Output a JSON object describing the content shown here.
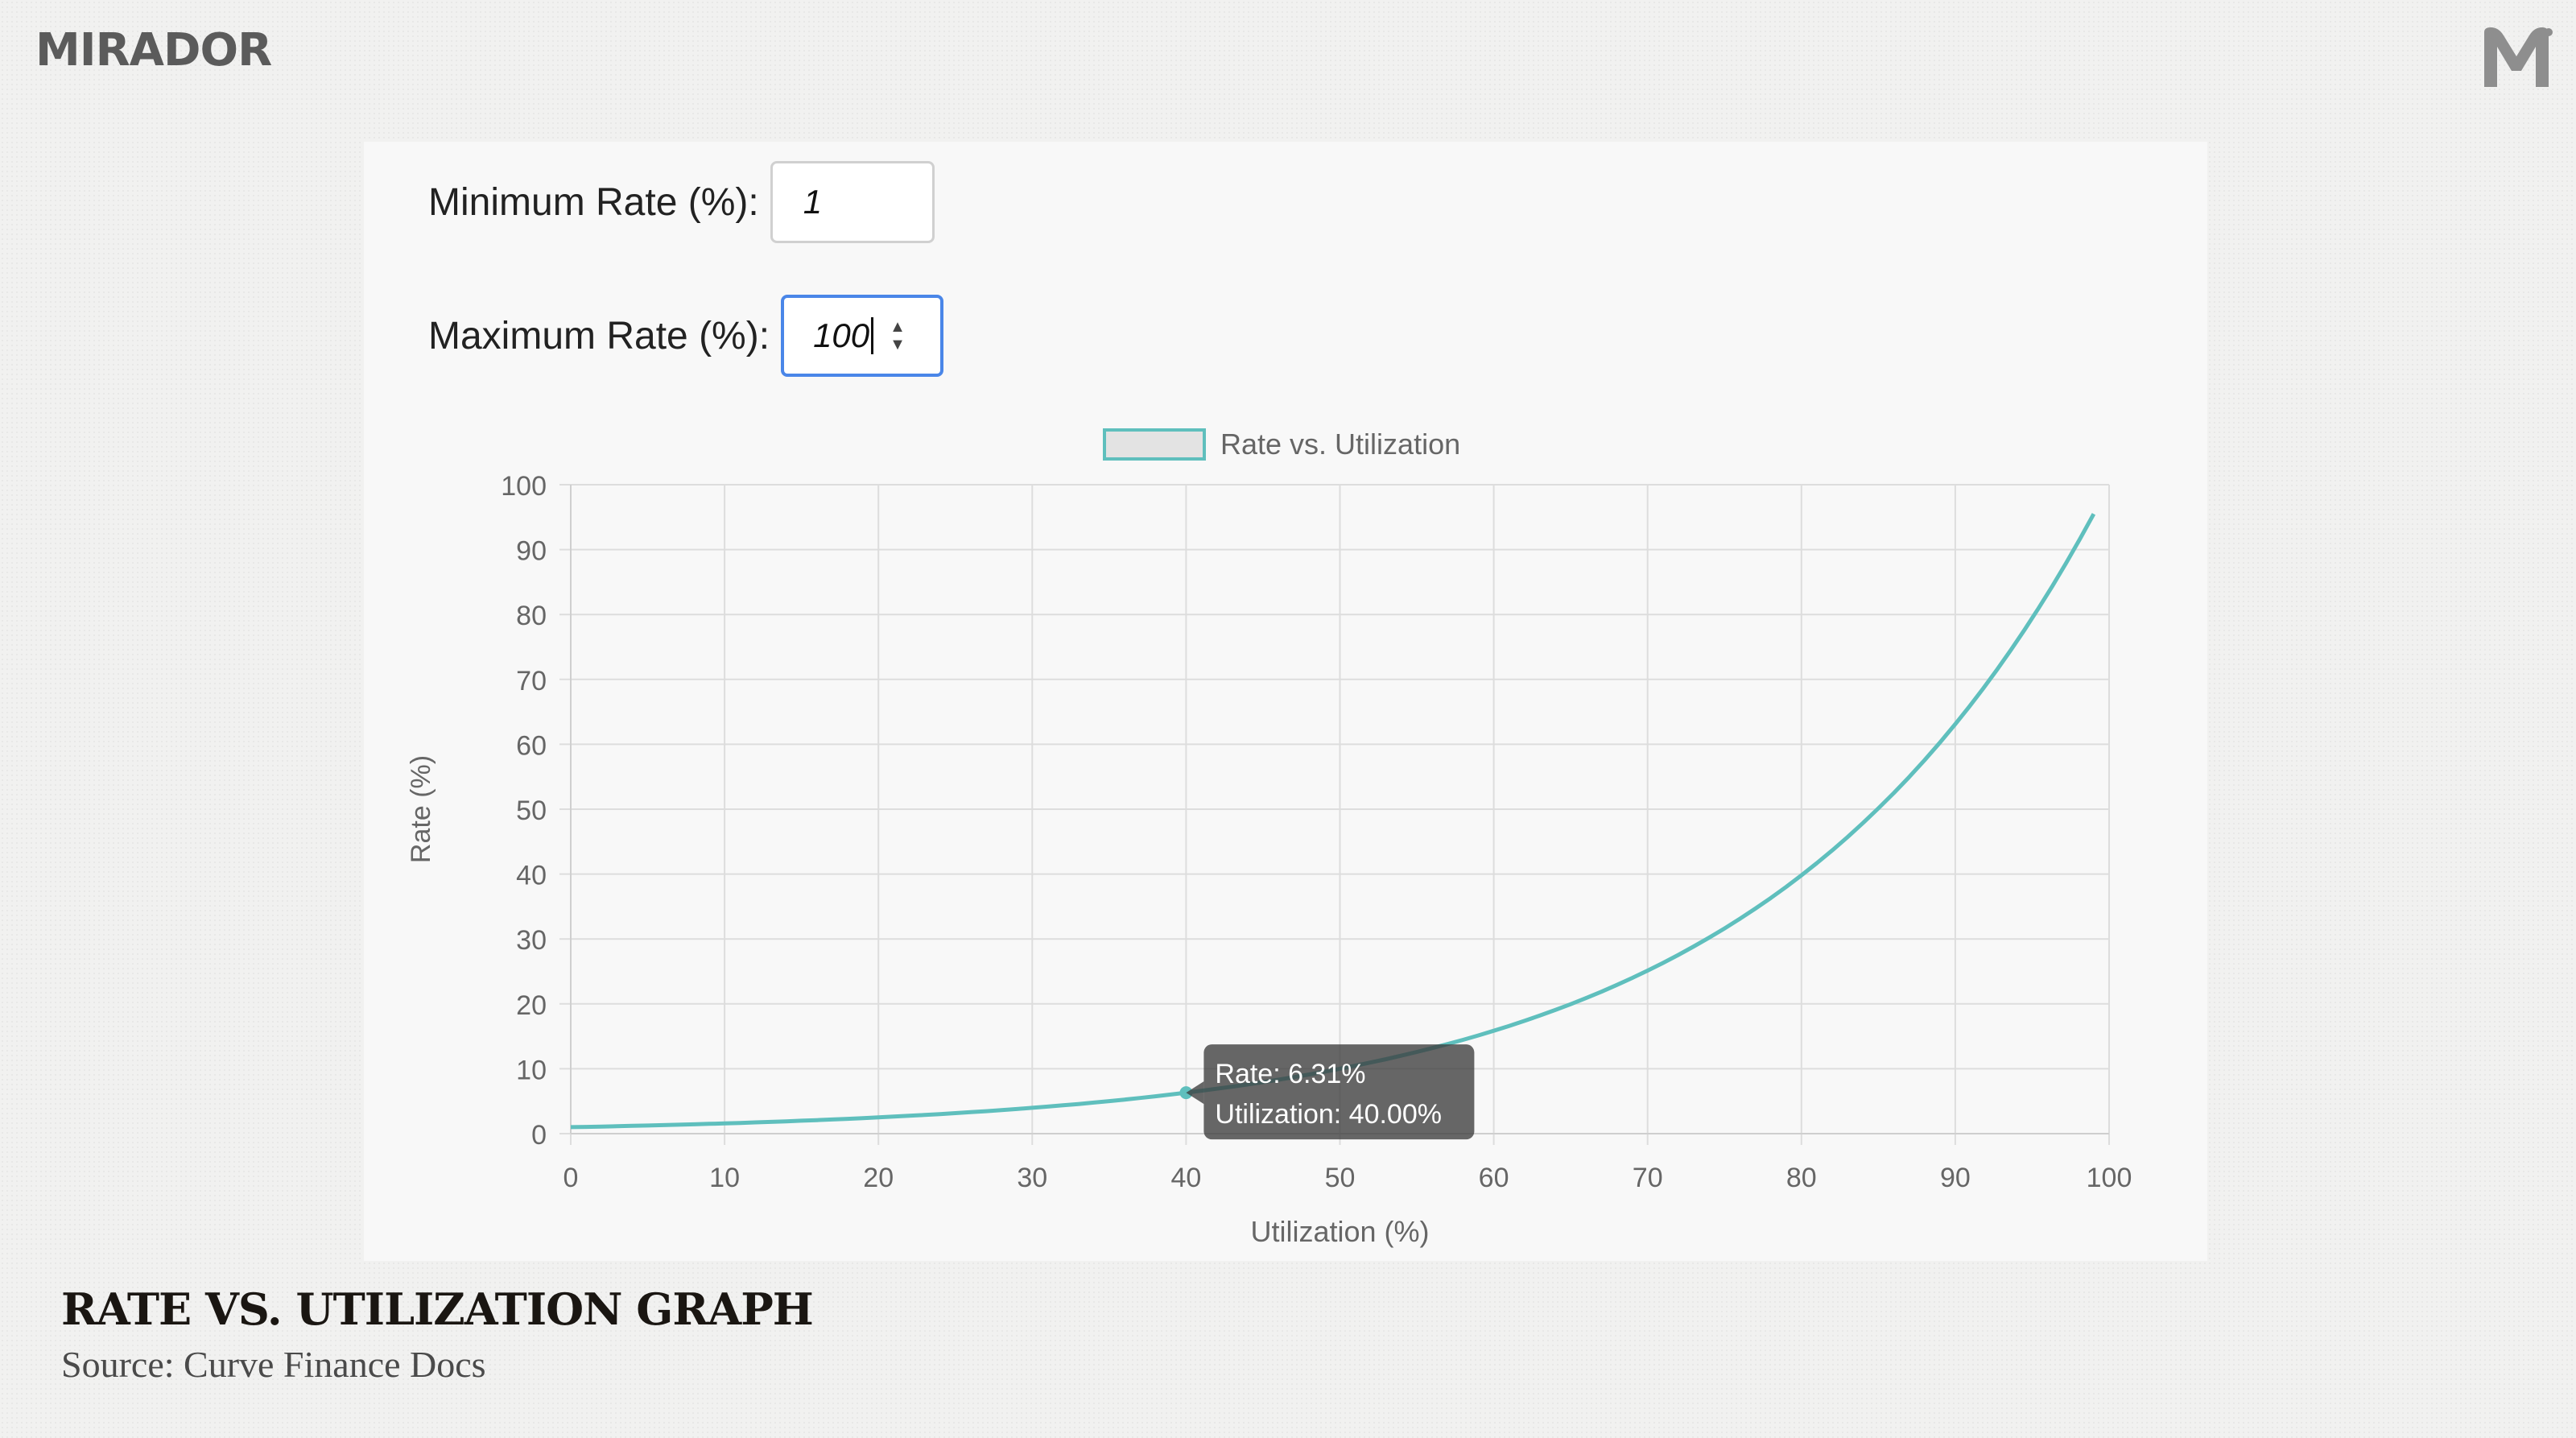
{
  "brand": {
    "name": "MIRADOR"
  },
  "inputs": {
    "min_rate": {
      "label": "Minimum Rate (%):",
      "value": "1"
    },
    "max_rate": {
      "label": "Maximum Rate (%):",
      "value": "100"
    }
  },
  "caption": {
    "title": "RATE VS. UTILIZATION GRAPH",
    "source": "Source: Curve Finance Docs"
  },
  "chart_data": {
    "type": "line",
    "title": "",
    "xlabel": "Utilization (%)",
    "ylabel": "Rate (%)",
    "xlim": [
      0,
      100
    ],
    "ylim": [
      0,
      100
    ],
    "xticks": [
      0,
      10,
      20,
      30,
      40,
      50,
      60,
      70,
      80,
      90,
      100
    ],
    "yticks": [
      0,
      10,
      20,
      30,
      40,
      50,
      60,
      70,
      80,
      90,
      100
    ],
    "grid": true,
    "legend": {
      "position": "top-center",
      "entries": [
        "Rate vs. Utilization"
      ]
    },
    "series": [
      {
        "name": "Rate vs. Utilization",
        "color": "#5fbfbd",
        "x": [
          0,
          10,
          20,
          30,
          40,
          50,
          60,
          70,
          80,
          90,
          99
        ],
        "y": [
          1.0,
          1.58,
          2.51,
          3.98,
          6.31,
          10.0,
          15.85,
          25.12,
          39.81,
          63.1,
          95.5
        ]
      }
    ],
    "tooltip": {
      "x": 40,
      "y": 6.31,
      "lines": [
        "Rate: 6.31%",
        "Utilization: 40.00%"
      ]
    }
  }
}
